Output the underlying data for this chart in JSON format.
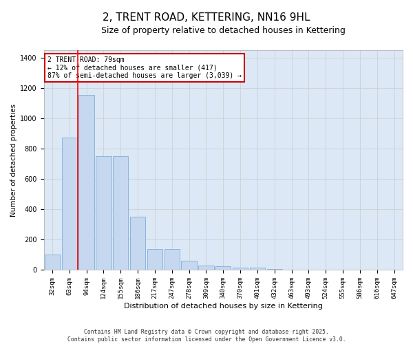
{
  "title": "2, TRENT ROAD, KETTERING, NN16 9HL",
  "subtitle": "Size of property relative to detached houses in Kettering",
  "xlabel": "Distribution of detached houses by size in Kettering",
  "ylabel": "Number of detached properties",
  "categories": [
    "32sqm",
    "63sqm",
    "94sqm",
    "124sqm",
    "155sqm",
    "186sqm",
    "217sqm",
    "247sqm",
    "278sqm",
    "309sqm",
    "340sqm",
    "370sqm",
    "401sqm",
    "432sqm",
    "463sqm",
    "493sqm",
    "524sqm",
    "555sqm",
    "586sqm",
    "616sqm",
    "647sqm"
  ],
  "values": [
    100,
    870,
    1155,
    750,
    750,
    350,
    140,
    140,
    60,
    30,
    25,
    18,
    18,
    8,
    0,
    0,
    0,
    0,
    0,
    0,
    0
  ],
  "bar_color": "#c5d8f0",
  "bar_edge_color": "#7fafd6",
  "red_line_x": 1.5,
  "annotation_title": "2 TRENT ROAD: 79sqm",
  "annotation_line1": "← 12% of detached houses are smaller (417)",
  "annotation_line2": "87% of semi-detached houses are larger (3,039) →",
  "annotation_box_color": "#ffffff",
  "annotation_box_edge": "#cc0000",
  "grid_color": "#cccccc",
  "background_color": "#dce8f5",
  "footer_line1": "Contains HM Land Registry data © Crown copyright and database right 2025.",
  "footer_line2": "Contains public sector information licensed under the Open Government Licence v3.0.",
  "ylim": [
    0,
    1450
  ],
  "title_fontsize": 11,
  "subtitle_fontsize": 9
}
